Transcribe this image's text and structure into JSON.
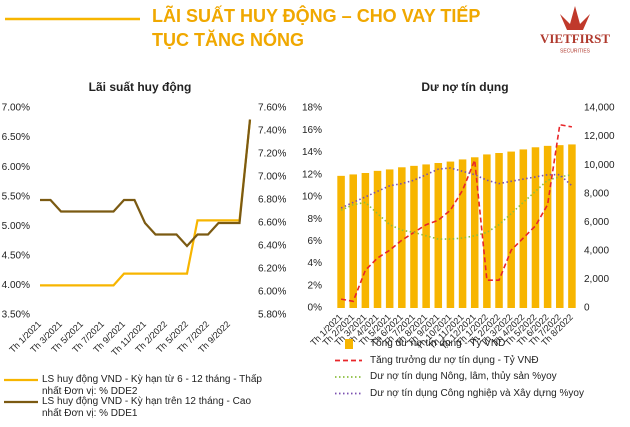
{
  "header": {
    "title_lines": [
      "LÃI SUẤT HUY ĐỘNG – CHO VAY TIẾP",
      "TỤC TĂNG NÓNG"
    ],
    "logo": "VIETFIRST",
    "logo_sub": "SECURITIES"
  },
  "chart_data": [
    {
      "type": "line",
      "title": "Lãi suất huy động",
      "categories": [
        "Th 1/2021",
        null,
        "Th 3/2021",
        null,
        "Th 5/2021",
        null,
        "Th 7/2021",
        null,
        "Th 9/2021",
        null,
        "Th 11/2021",
        null,
        "Th 2/2022",
        null,
        "Th 5/2022",
        null,
        "Th 7/2022",
        null,
        "Th 9/2022",
        null,
        null
      ],
      "series": [
        {
          "name": "LS huy động VND - Kỳ hạn từ 6 - 12 tháng - Thấp nhất Đơn vị: % DDE2",
          "color": "#f7b500",
          "values": [
            4.0,
            4.0,
            4.0,
            4.0,
            4.0,
            4.0,
            4.0,
            4.0,
            4.2,
            4.2,
            4.2,
            4.2,
            4.2,
            4.2,
            4.2,
            5.1,
            5.1,
            5.1,
            5.1,
            5.1,
            6.8
          ]
        },
        {
          "name": "LS huy động VND - Kỳ hạn trên 12 tháng - Cao nhất Đơn vị: % DDE1",
          "color": "#7b5a12",
          "axis": "y2",
          "values": [
            6.8,
            6.8,
            6.7,
            6.7,
            6.7,
            6.7,
            6.7,
            6.7,
            6.8,
            6.8,
            6.6,
            6.5,
            6.5,
            6.5,
            6.4,
            6.5,
            6.5,
            6.6,
            6.6,
            6.6,
            7.5
          ]
        }
      ],
      "ylim": [
        3.5,
        7.0
      ],
      "yticks": [
        {
          "value": 3.5,
          "label": "3.50%"
        },
        {
          "value": 4.0,
          "label": "4.00%"
        },
        {
          "value": 4.5,
          "label": "4.50%"
        },
        {
          "value": 5.0,
          "label": "5.00%"
        },
        {
          "value": 5.5,
          "label": "5.50%"
        },
        {
          "value": 6.0,
          "label": "6.00%"
        },
        {
          "value": 6.5,
          "label": "6.50%"
        },
        {
          "value": 7.0,
          "label": "7.00%"
        }
      ],
      "y2lim": [
        5.8,
        7.6
      ],
      "y2ticks": [
        {
          "value": 5.8,
          "label": "5.80%"
        },
        {
          "value": 6.0,
          "label": "6.00%"
        },
        {
          "value": 6.2,
          "label": "6.20%"
        },
        {
          "value": 6.4,
          "label": "6.40%"
        },
        {
          "value": 6.6,
          "label": "6.60%"
        },
        {
          "value": 6.8,
          "label": "6.80%"
        },
        {
          "value": 7.0,
          "label": "7.00%"
        },
        {
          "value": 7.2,
          "label": "7.20%"
        },
        {
          "value": 7.4,
          "label": "7.40%"
        },
        {
          "value": 7.6,
          "label": "7.60%"
        }
      ],
      "grid": false
    },
    {
      "type": "bar",
      "title": "Dư nợ tín dụng",
      "categories": [
        "Th 1/2021",
        "Th 2/2021",
        "Th 3/2021",
        "Th 4/2021",
        "Th 5/2021",
        "Th 6/2021",
        "Th 7/2021",
        "Th 8/2021",
        "Th 9/2021",
        "Th 10/2021",
        "Th 11/2021",
        "Th 12/2021",
        "Th 1/2022",
        "Th 2/2022",
        "Th 3/2022",
        "Th 4/2022",
        "Th 5/2022",
        "Th 6/2022",
        "Th 7/2022",
        "Th 8/2022"
      ],
      "series": [
        {
          "name": "Tổng dư nợ tín dụng - Tỷ VND",
          "type": "bar",
          "axis": "y2",
          "color": "#f7b500",
          "values": [
            9250,
            9350,
            9450,
            9600,
            9700,
            9850,
            9950,
            10050,
            10150,
            10250,
            10400,
            10550,
            10750,
            10850,
            10950,
            11100,
            11250,
            11350,
            11400,
            11450
          ]
        },
        {
          "name": "Tăng trưởng dư nợ tín dụng - Tỷ VNĐ",
          "type": "line",
          "dash": "dashed",
          "color": "#e8262a",
          "values": [
            0.8,
            0.6,
            3.4,
            4.5,
            5.2,
            6.1,
            6.8,
            7.5,
            7.9,
            8.8,
            10.6,
            13.3,
            2.5,
            2.5,
            5.2,
            6.3,
            7.4,
            9.3,
            16.5,
            16.3
          ]
        },
        {
          "name": "Dư nợ tín dụng Nông, lâm, thủy sản %yoy",
          "type": "line",
          "dash": "dotted",
          "color": "#8cbf3f",
          "values": [
            8.8,
            9.3,
            9.5,
            8.5,
            7.5,
            7.0,
            6.8,
            6.5,
            6.2,
            6.2,
            6.3,
            6.5,
            6.8,
            7.5,
            8.5,
            9.5,
            10.5,
            11.5,
            11.8,
            12.0
          ]
        },
        {
          "name": "Dư nợ tín dụng Công nghiệp và Xây dựng %yoy",
          "type": "line",
          "dash": "dotted",
          "color": "#7a4fb0",
          "values": [
            9.0,
            9.5,
            10.0,
            10.5,
            11.0,
            11.2,
            11.5,
            12.0,
            12.5,
            12.6,
            12.3,
            12.0,
            11.5,
            11.2,
            11.4,
            11.6,
            11.8,
            12.0,
            12.0,
            11.0
          ]
        }
      ],
      "ylim": [
        0,
        18
      ],
      "yticks": [
        {
          "value": 0,
          "label": "0%"
        },
        {
          "value": 2,
          "label": "2%"
        },
        {
          "value": 4,
          "label": "4%"
        },
        {
          "value": 6,
          "label": "6%"
        },
        {
          "value": 8,
          "label": "8%"
        },
        {
          "value": 10,
          "label": "10%"
        },
        {
          "value": 12,
          "label": "12%"
        },
        {
          "value": 14,
          "label": "14%"
        },
        {
          "value": 16,
          "label": "16%"
        },
        {
          "value": 18,
          "label": "18%"
        }
      ],
      "y2lim": [
        0,
        14000
      ],
      "y2ticks": [
        0,
        {
          "value": 2000,
          "label": "2,000"
        },
        {
          "value": 4000,
          "label": "4,000"
        },
        {
          "value": 6000,
          "label": "6,000"
        },
        {
          "value": 8000,
          "label": "8,000"
        },
        {
          "value": 10000,
          "label": "10,000"
        },
        {
          "value": 12000,
          "label": "12,000"
        },
        {
          "value": 14000,
          "label": "14,000"
        }
      ],
      "grid": false
    }
  ]
}
